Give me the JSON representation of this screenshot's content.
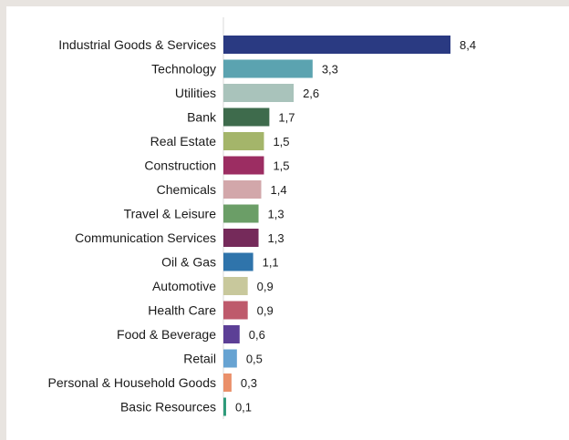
{
  "chart_data": {
    "type": "bar",
    "orientation": "horizontal",
    "title": "",
    "xlabel": "",
    "ylabel": "",
    "xlim": [
      0,
      8.4
    ],
    "grid": false,
    "legend": "none",
    "categories": [
      "Industrial Goods & Services",
      "Technology",
      "Utilities",
      "Bank",
      "Real Estate",
      "Construction",
      "Chemicals",
      "Travel & Leisure",
      "Communication Services",
      "Oil & Gas",
      "Automotive",
      "Health Care",
      "Food & Beverage",
      "Retail",
      "Personal & Household Goods",
      "Basic Resources"
    ],
    "values": [
      8.4,
      3.3,
      2.6,
      1.7,
      1.5,
      1.5,
      1.4,
      1.3,
      1.3,
      1.1,
      0.9,
      0.9,
      0.6,
      0.5,
      0.3,
      0.1
    ],
    "value_labels": [
      "8,4",
      "3,3",
      "2,6",
      "1,7",
      "1,5",
      "1,5",
      "1,4",
      "1,3",
      "1,3",
      "1,1",
      "0,9",
      "0,9",
      "0,6",
      "0,5",
      "0,3",
      "0,1"
    ],
    "colors": [
      "#2a3a82",
      "#5ba3b0",
      "#a9c3bb",
      "#3e6b4c",
      "#a4b56a",
      "#9c2d62",
      "#d2a7aa",
      "#6b9e67",
      "#752a5a",
      "#2f74ab",
      "#c8c89c",
      "#be5a6c",
      "#5c3f96",
      "#67a3d2",
      "#ea906a",
      "#2e9a7a"
    ]
  }
}
